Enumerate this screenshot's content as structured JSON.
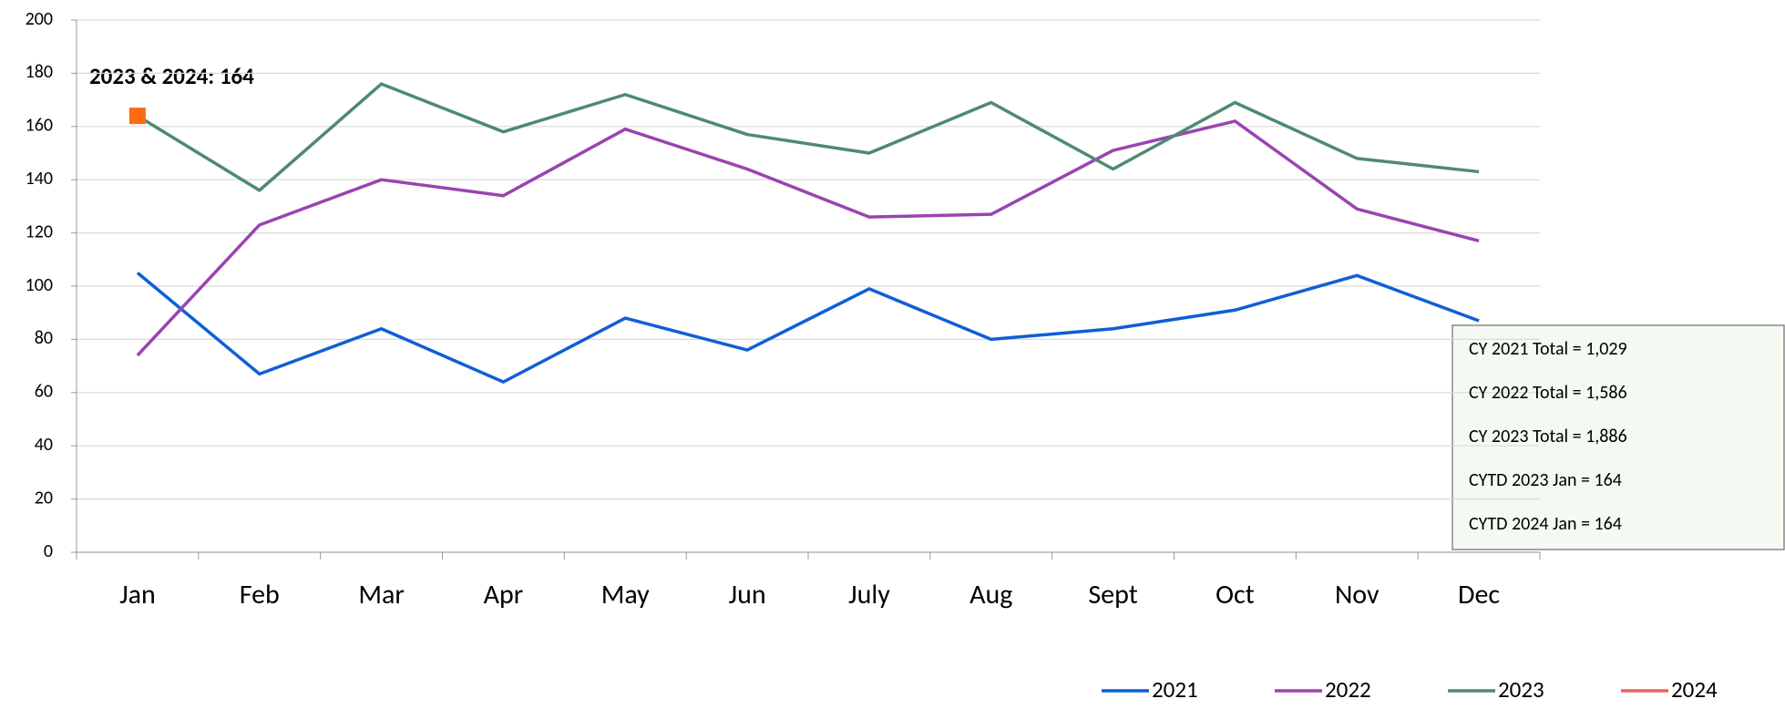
{
  "chart_data": {
    "type": "line",
    "categories": [
      "Jan",
      "Feb",
      "Mar",
      "Apr",
      "May",
      "Jun",
      "July",
      "Aug",
      "Sept",
      "Oct",
      "Nov",
      "Dec"
    ],
    "series": [
      {
        "name": "2021",
        "color": "#0f5fd6",
        "values": [
          105,
          67,
          84,
          64,
          88,
          76,
          99,
          80,
          84,
          91,
          104,
          87
        ]
      },
      {
        "name": "2022",
        "color": "#9a44b0",
        "values": [
          74,
          123,
          140,
          134,
          159,
          144,
          126,
          127,
          151,
          162,
          129,
          117
        ]
      },
      {
        "name": "2023",
        "color": "#4e8a72",
        "values": [
          164,
          136,
          176,
          158,
          172,
          157,
          150,
          169,
          144,
          169,
          148,
          143
        ]
      },
      {
        "name": "2024",
        "color": "#f0605a",
        "marker_color": "#ff6a13",
        "values": [
          164,
          null,
          null,
          null,
          null,
          null,
          null,
          null,
          null,
          null,
          null,
          null
        ]
      }
    ],
    "ylim": [
      0,
      200
    ],
    "yticks": [
      0,
      20,
      40,
      60,
      80,
      100,
      120,
      140,
      160,
      180,
      200
    ],
    "grid": true,
    "annotation": "2023 & 2024: 164",
    "text_box": [
      "CY 2021 Total = 1,029",
      "CY 2022 Total = 1,586",
      "CY 2023 Total = 1,886",
      "CYTD 2023 Jan = 164",
      "CYTD 2024 Jan = 164"
    ],
    "legend": "bottom-right"
  }
}
